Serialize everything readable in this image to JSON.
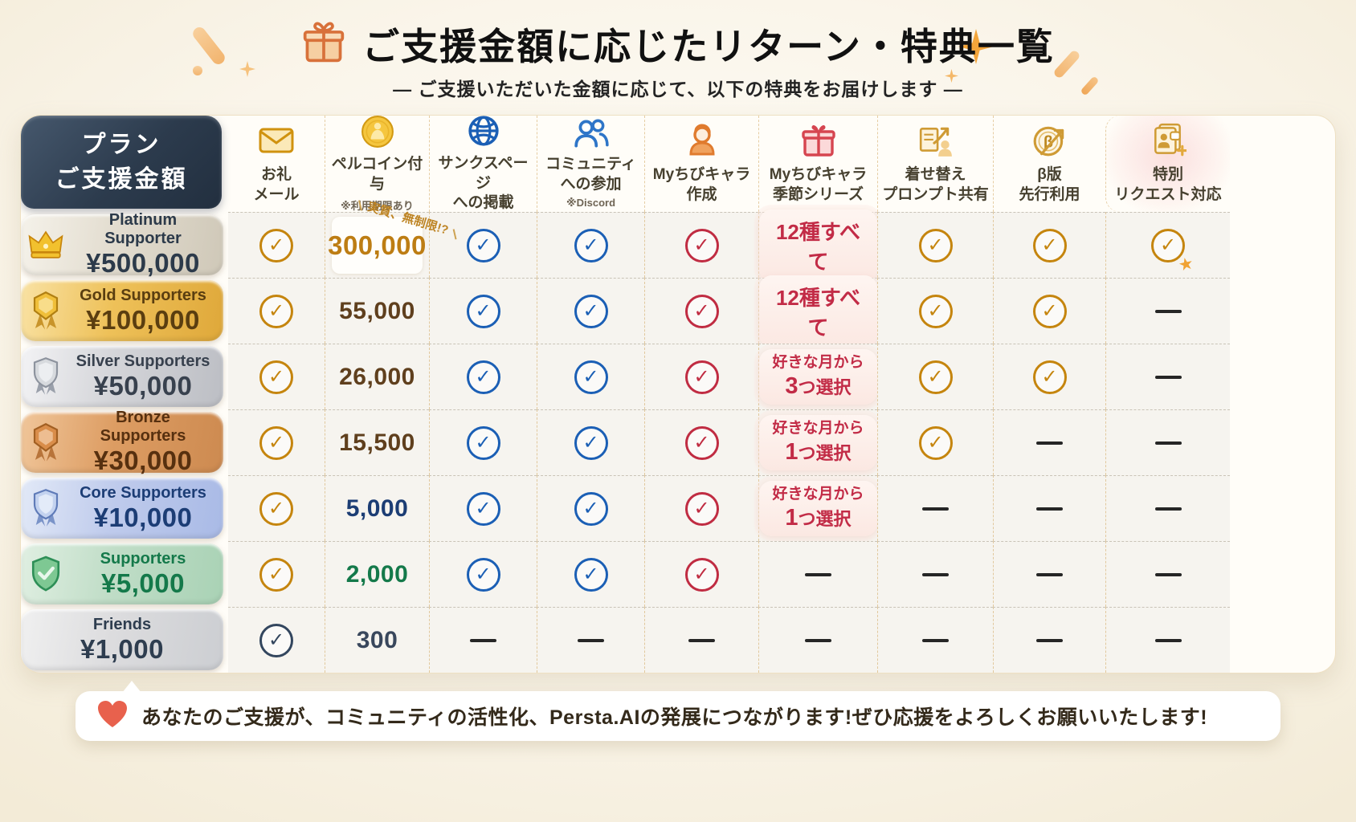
{
  "header": {
    "title": "ご支援金額に応じたリターン・特典一覧",
    "subtitle": "— ご支援いただいた金額に応じて、以下の特典をお届けします —",
    "gift_icon": "gift-icon"
  },
  "table": {
    "plan_header": {
      "line1": "プラン",
      "line2": "ご支援金額"
    },
    "coin_annotation": "実質、無制限!?",
    "columns": [
      {
        "id": "thanks-mail",
        "icon": "envelope-icon",
        "lines": [
          "お礼",
          "メール"
        ],
        "note": ""
      },
      {
        "id": "percoin",
        "icon": "coin-icon",
        "lines": [
          "ペルコイン付与"
        ],
        "note": "※利用期限あり"
      },
      {
        "id": "thanks-page",
        "icon": "globe-icon",
        "lines": [
          "サンクスページ",
          "への掲載"
        ],
        "note": ""
      },
      {
        "id": "community",
        "icon": "people-icon",
        "lines": [
          "コミュニティ",
          "への参加"
        ],
        "note": "※Discord"
      },
      {
        "id": "chibi-create",
        "icon": "chibi-character-icon",
        "lines": [
          "Myちびキャラ",
          "作成"
        ],
        "note": ""
      },
      {
        "id": "chibi-season",
        "icon": "gift-box-icon",
        "lines": [
          "Myちびキャラ",
          "季節シリーズ"
        ],
        "note": ""
      },
      {
        "id": "dressup-prompt",
        "icon": "prompt-share-icon",
        "lines": [
          "着せ替え",
          "プロンプト共有"
        ],
        "note": ""
      },
      {
        "id": "beta-access",
        "icon": "beta-clock-icon",
        "lines": [
          "β版",
          "先行利用"
        ],
        "note": ""
      },
      {
        "id": "special-request",
        "icon": "special-request-icon",
        "lines": [
          "特別",
          "リクエスト対応"
        ],
        "note": "",
        "highlight": true
      }
    ],
    "rows": [
      {
        "tier": {
          "name": "Platinum Supporter",
          "amount": "¥500,000",
          "theme": "platinum",
          "icon": "crown-icon"
        },
        "cells": [
          {
            "type": "check",
            "color": "gold"
          },
          {
            "type": "number",
            "value": "300,000",
            "color": "gold",
            "annotated": true,
            "boxed": true
          },
          {
            "type": "check",
            "color": "blue"
          },
          {
            "type": "check",
            "color": "blue"
          },
          {
            "type": "check",
            "color": "red"
          },
          {
            "type": "badge",
            "lines": [
              "12種すべて"
            ]
          },
          {
            "type": "check",
            "color": "gold"
          },
          {
            "type": "check",
            "color": "gold"
          },
          {
            "type": "check",
            "color": "gold",
            "star": true
          }
        ]
      },
      {
        "tier": {
          "name": "Gold Supporters",
          "amount": "¥100,000",
          "theme": "gold",
          "icon": "gold-medal-icon"
        },
        "cells": [
          {
            "type": "check",
            "color": "gold"
          },
          {
            "type": "number",
            "value": "55,000",
            "color": "brown"
          },
          {
            "type": "check",
            "color": "blue"
          },
          {
            "type": "check",
            "color": "blue"
          },
          {
            "type": "check",
            "color": "red"
          },
          {
            "type": "badge",
            "lines": [
              "12種すべて"
            ]
          },
          {
            "type": "check",
            "color": "gold"
          },
          {
            "type": "check",
            "color": "gold"
          },
          {
            "type": "dash"
          }
        ]
      },
      {
        "tier": {
          "name": "Silver Supporters",
          "amount": "¥50,000",
          "theme": "silver",
          "icon": "silver-medal-icon"
        },
        "cells": [
          {
            "type": "check",
            "color": "gold"
          },
          {
            "type": "number",
            "value": "26,000",
            "color": "brown"
          },
          {
            "type": "check",
            "color": "blue"
          },
          {
            "type": "check",
            "color": "blue"
          },
          {
            "type": "check",
            "color": "red"
          },
          {
            "type": "badge",
            "lines": [
              "好きな月から",
              "3つ選択"
            ]
          },
          {
            "type": "check",
            "color": "gold"
          },
          {
            "type": "check",
            "color": "gold"
          },
          {
            "type": "dash"
          }
        ]
      },
      {
        "tier": {
          "name": "Bronze Supporters",
          "amount": "¥30,000",
          "theme": "bronze",
          "icon": "bronze-medal-icon"
        },
        "cells": [
          {
            "type": "check",
            "color": "gold"
          },
          {
            "type": "number",
            "value": "15,500",
            "color": "brown"
          },
          {
            "type": "check",
            "color": "blue"
          },
          {
            "type": "check",
            "color": "blue"
          },
          {
            "type": "check",
            "color": "red"
          },
          {
            "type": "badge",
            "lines": [
              "好きな月から",
              "1つ選択"
            ]
          },
          {
            "type": "check",
            "color": "gold"
          },
          {
            "type": "dash"
          },
          {
            "type": "dash"
          }
        ]
      },
      {
        "tier": {
          "name": "Core Supporters",
          "amount": "¥10,000",
          "theme": "core",
          "icon": "blue-shield-icon"
        },
        "cells": [
          {
            "type": "check",
            "color": "gold"
          },
          {
            "type": "number",
            "value": "5,000",
            "color": "navy"
          },
          {
            "type": "check",
            "color": "blue"
          },
          {
            "type": "check",
            "color": "blue"
          },
          {
            "type": "check",
            "color": "red"
          },
          {
            "type": "badge",
            "lines": [
              "好きな月から",
              "1つ選択"
            ]
          },
          {
            "type": "dash"
          },
          {
            "type": "dash"
          },
          {
            "type": "dash"
          }
        ]
      },
      {
        "tier": {
          "name": "Supporters",
          "amount": "¥5,000",
          "theme": "supporters",
          "icon": "green-shield-icon"
        },
        "cells": [
          {
            "type": "check",
            "color": "gold"
          },
          {
            "type": "number",
            "value": "2,000",
            "color": "green"
          },
          {
            "type": "check",
            "color": "blue"
          },
          {
            "type": "check",
            "color": "blue"
          },
          {
            "type": "check",
            "color": "red"
          },
          {
            "type": "dash"
          },
          {
            "type": "dash"
          },
          {
            "type": "dash"
          },
          {
            "type": "dash"
          }
        ]
      },
      {
        "tier": {
          "name": "Friends",
          "amount": "¥1,000",
          "theme": "friends",
          "icon": ""
        },
        "cells": [
          {
            "type": "check",
            "color": "navy"
          },
          {
            "type": "number",
            "value": "300",
            "color": "slate"
          },
          {
            "type": "dash"
          },
          {
            "type": "dash"
          },
          {
            "type": "dash"
          },
          {
            "type": "dash"
          },
          {
            "type": "dash"
          },
          {
            "type": "dash"
          },
          {
            "type": "dash"
          }
        ]
      }
    ]
  },
  "footer": {
    "icon": "heart-icon",
    "message": "あなたのご支援が、コミュニティの活性化、Persta.AIの発展につながります!ぜひ応援をよろしくお願いいたします!"
  },
  "colors": {
    "check_gold": "#c5850e",
    "check_blue": "#1b5fb5",
    "check_red": "#c02c42",
    "check_navy": "#33465e",
    "badge_red": "#c22b46",
    "plan_header_bg": "#2c3b4d",
    "page_bg": "#faf5ea",
    "accent_orange": "#e07b39"
  }
}
